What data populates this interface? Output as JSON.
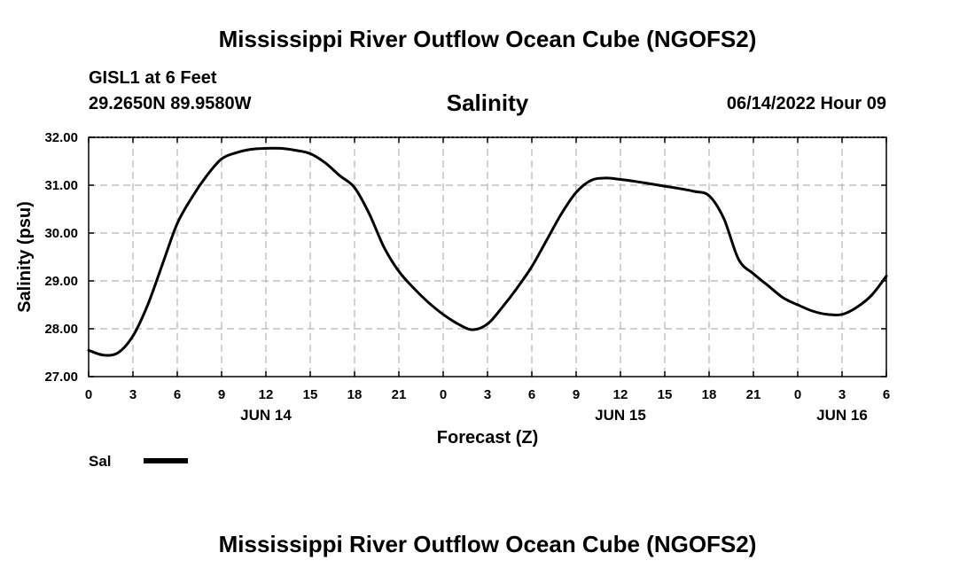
{
  "header": {
    "title": "Mississippi River Outflow Ocean Cube (NGOFS2)",
    "station": "GISL1 at 6 Feet",
    "coordinates": "29.2650N  89.9580W",
    "subtitle": "Salinity",
    "timestamp": "06/14/2022 Hour 09"
  },
  "footer": {
    "title": "Mississippi River Outflow Ocean Cube (NGOFS2)"
  },
  "colors": {
    "line": "#000000",
    "grid": "#b4b4b4",
    "axis": "#000000"
  },
  "chart_data": {
    "type": "line",
    "title": "Salinity",
    "xlabel": "Forecast (Z)",
    "ylabel": "Salinity (psu)",
    "xlim": [
      0,
      54
    ],
    "ylim": [
      27.0,
      32.0
    ],
    "x_tick_labels": [
      "0",
      "3",
      "6",
      "9",
      "12",
      "15",
      "18",
      "21",
      "0",
      "3",
      "6",
      "9",
      "12",
      "15",
      "18",
      "21",
      "0",
      "3",
      "6"
    ],
    "y_tick_labels": [
      "32.00",
      "31.00",
      "30.00",
      "29.00",
      "28.00",
      "27.00"
    ],
    "y_tick_values": [
      32,
      31,
      30,
      29,
      28,
      27
    ],
    "date_labels": [
      {
        "label": "JUN 14",
        "x": 12
      },
      {
        "label": "JUN 15",
        "x": 36
      },
      {
        "label": "JUN 16",
        "x": 51
      }
    ],
    "grid": true,
    "legend": [
      {
        "label": "Sal",
        "color": "#000000"
      }
    ],
    "series": [
      {
        "name": "Sal",
        "x": [
          0,
          1,
          2,
          3,
          4,
          5,
          6,
          7,
          8,
          9,
          10,
          11,
          12,
          13,
          14,
          15,
          16,
          17,
          18,
          19,
          20,
          21,
          22,
          23,
          24,
          25,
          26,
          27,
          28,
          29,
          30,
          31,
          32,
          33,
          34,
          35,
          36,
          37,
          38,
          39,
          40,
          41,
          42,
          43,
          44,
          45,
          46,
          47,
          48,
          49,
          50,
          51,
          52,
          53,
          54
        ],
        "values": [
          27.55,
          27.45,
          27.5,
          27.85,
          28.5,
          29.35,
          30.2,
          30.75,
          31.2,
          31.55,
          31.68,
          31.75,
          31.77,
          31.77,
          31.73,
          31.66,
          31.47,
          31.2,
          30.95,
          30.4,
          29.7,
          29.2,
          28.85,
          28.55,
          28.3,
          28.1,
          27.98,
          28.1,
          28.45,
          28.85,
          29.3,
          29.85,
          30.4,
          30.85,
          31.1,
          31.15,
          31.12,
          31.08,
          31.03,
          30.98,
          30.93,
          30.87,
          30.78,
          30.3,
          29.45,
          29.15,
          28.9,
          28.65,
          28.5,
          28.37,
          28.3,
          28.3,
          28.45,
          28.7,
          29.1
        ]
      }
    ]
  }
}
